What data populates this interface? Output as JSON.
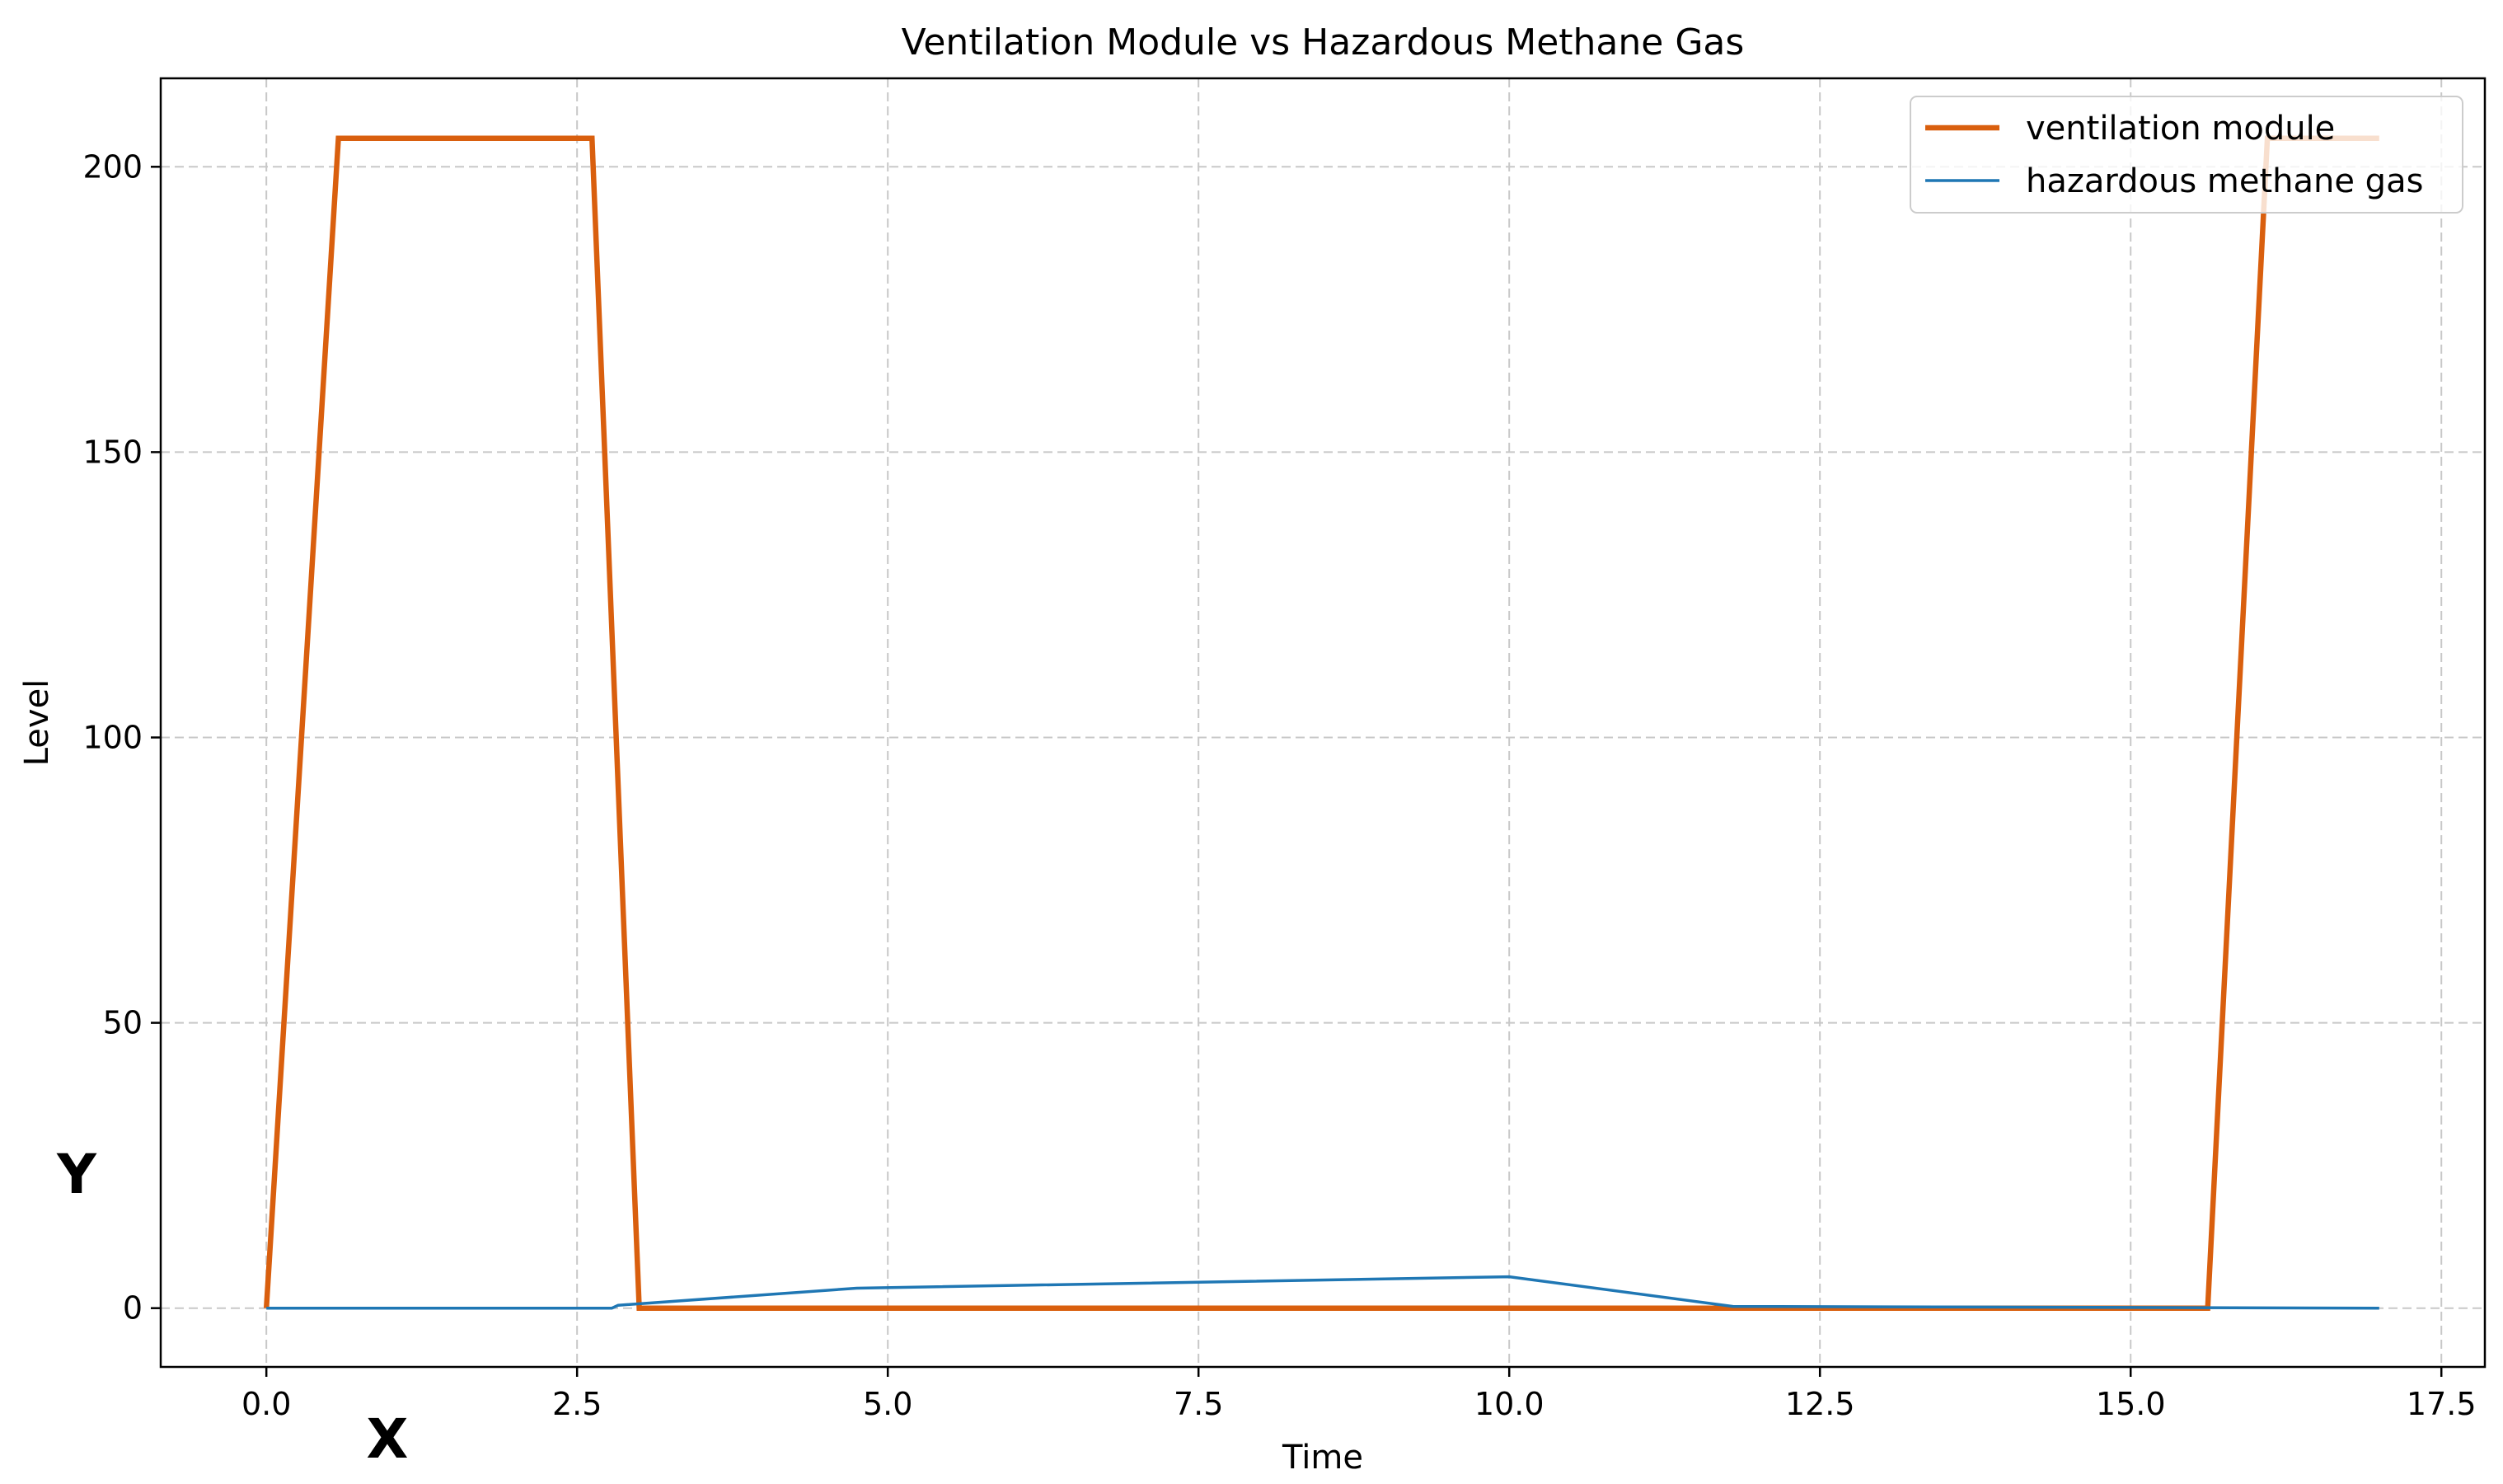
{
  "chart_data": {
    "type": "line",
    "title": "Ventilation Module vs Hazardous Methane Gas",
    "xlabel": "Time",
    "ylabel": "Level",
    "xlim": [
      -0.85,
      17.85
    ],
    "ylim": [
      -10.3,
      215.5
    ],
    "xticks": [
      0.0,
      2.5,
      5.0,
      7.5,
      10.0,
      12.5,
      15.0,
      17.5
    ],
    "xtick_labels": [
      "0.0",
      "2.5",
      "5.0",
      "7.5",
      "10.0",
      "12.5",
      "15.0",
      "17.5"
    ],
    "yticks": [
      0,
      50,
      100,
      150,
      200
    ],
    "ytick_labels": [
      "0",
      "50",
      "100",
      "150",
      "200"
    ],
    "grid": true,
    "legend_position": "top-right",
    "series": [
      {
        "name": "ventilation module",
        "color": "#d95f0e",
        "points": [
          [
            0.0,
            0
          ],
          [
            0.58,
            205
          ],
          [
            2.62,
            205
          ],
          [
            3.0,
            0
          ],
          [
            15.62,
            0
          ],
          [
            16.1,
            205
          ],
          [
            17.0,
            205
          ]
        ]
      },
      {
        "name": "hazardous methane gas",
        "color": "#1f77b4",
        "points": [
          [
            0.0,
            0
          ],
          [
            2.78,
            0
          ],
          [
            2.83,
            0.5
          ],
          [
            4.75,
            3.5
          ],
          [
            10.0,
            5.5
          ],
          [
            11.8,
            0.3
          ],
          [
            17.0,
            0
          ]
        ]
      }
    ],
    "annotations": [
      "Y",
      "X"
    ]
  }
}
